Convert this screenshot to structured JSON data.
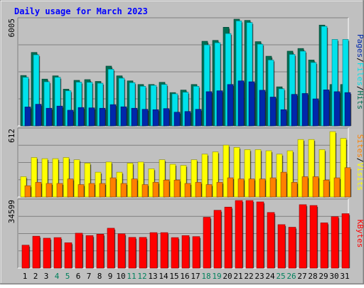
{
  "chart_data": {
    "type": "bar",
    "title": "Daily usage for March 2023",
    "categories": [
      "1",
      "2",
      "3",
      "4",
      "5",
      "6",
      "7",
      "8",
      "9",
      "10",
      "11",
      "12",
      "13",
      "14",
      "15",
      "16",
      "17",
      "18",
      "19",
      "20",
      "21",
      "22",
      "23",
      "24",
      "25",
      "26",
      "27",
      "28",
      "29",
      "30",
      "31"
    ],
    "weekend_days": [
      "4",
      "5",
      "11",
      "12",
      "18",
      "19",
      "25",
      "26"
    ],
    "panels": [
      {
        "id": "hits-files-pages",
        "max_label": "6005",
        "ylim": [
          0,
          6005
        ],
        "legend": [
          "Pages",
          "Files",
          "Hits"
        ],
        "series": [
          {
            "name": "Hits",
            "color": "#006E52",
            "values": [
              2800,
              4080,
              2600,
              2780,
              2040,
              2530,
              2570,
              2470,
              3320,
              2780,
              2500,
              2300,
              2300,
              2420,
              1850,
              1990,
              2300,
              4700,
              4750,
              5480,
              5930,
              5860,
              4680,
              3870,
              2170,
              4150,
              4300,
              3660,
              5600,
              2300,
              2300
            ]
          },
          {
            "name": "Files",
            "color": "#00E2EB",
            "values": [
              2700,
              3950,
              2450,
              2700,
              1950,
              2430,
              2420,
              2370,
              3150,
              2650,
              2400,
              2200,
              2250,
              2300,
              1780,
              1870,
              2200,
              4500,
              4620,
              5130,
              5830,
              5740,
              4540,
              3660,
              2060,
              3970,
              4150,
              3520,
              5530,
              4800,
              4800
            ]
          },
          {
            "name": "Pages",
            "color": "#0028AB",
            "values": [
              1050,
              1200,
              980,
              1100,
              870,
              1020,
              1000,
              980,
              1180,
              1060,
              980,
              920,
              900,
              960,
              760,
              800,
              920,
              1900,
              1950,
              2300,
              2500,
              2450,
              1980,
              1600,
              900,
              1750,
              1800,
              1500,
              2000,
              1900,
              1850
            ]
          }
        ]
      },
      {
        "id": "visits-sites",
        "max_label": "612",
        "ylim": [
          0,
          612
        ],
        "legend": [
          "Sites",
          "Visits"
        ],
        "series": [
          {
            "name": "Visits",
            "color": "#FFFF00",
            "values": [
              180,
              350,
              340,
              340,
              350,
              330,
              300,
              220,
              310,
              220,
              300,
              310,
              250,
              330,
              290,
              280,
              330,
              380,
              400,
              460,
              440,
              420,
              420,
              410,
              380,
              410,
              510,
              510,
              420,
              580,
              520
            ]
          },
          {
            "name": "Sites",
            "color": "#FF8000",
            "values": [
              100,
              130,
              120,
              120,
              160,
              110,
              120,
              120,
              170,
              120,
              160,
              110,
              130,
              150,
              150,
              120,
              130,
              110,
              130,
              170,
              160,
              160,
              160,
              170,
              220,
              130,
              180,
              180,
              150,
              170,
              260
            ]
          }
        ]
      },
      {
        "id": "kbytes",
        "max_label": "34599",
        "ylim": [
          0,
          34599
        ],
        "legend": [
          "KBytes"
        ],
        "series": [
          {
            "name": "KBytes",
            "color": "#FF0000",
            "values": [
              11500,
              16000,
              15000,
              15300,
              12700,
              17500,
              16300,
              17000,
              20000,
              17200,
              15400,
              15400,
              17800,
              17800,
              15300,
              16300,
              15800,
              25500,
              29000,
              30600,
              34000,
              35800,
              33200,
              27900,
              21800,
              20500,
              31800,
              31400,
              22700,
              25800,
              27300
            ]
          }
        ]
      }
    ]
  }
}
